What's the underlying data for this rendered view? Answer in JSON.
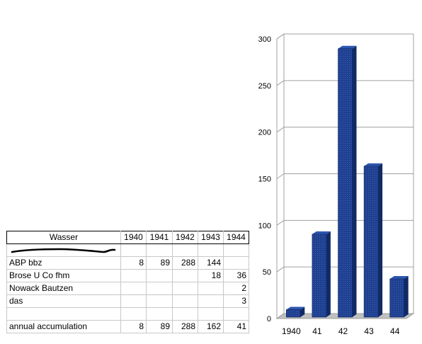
{
  "table": {
    "header": [
      "Wasser",
      "1940",
      "1941",
      "1942",
      "1943",
      "1944"
    ],
    "rows": [
      [
        "ABP bbz",
        "8",
        "89",
        "288",
        "144",
        ""
      ],
      [
        "Brose U Co fhm",
        "",
        "",
        "",
        "18",
        "36"
      ],
      [
        "Nowack Bautzen",
        "",
        "",
        "",
        "",
        "2"
      ],
      [
        "das",
        "",
        "",
        "",
        "",
        "3"
      ],
      [
        "",
        "",
        "",
        "",
        "",
        ""
      ]
    ],
    "total": [
      "annual  accumulation",
      "8",
      "89",
      "288",
      "162",
      "41"
    ]
  },
  "chart_data": {
    "type": "bar",
    "categories": [
      "1940",
      "41",
      "42",
      "43",
      "44"
    ],
    "values": [
      8,
      89,
      288,
      162,
      41
    ],
    "ylim": [
      0,
      300
    ],
    "yticks": [
      0,
      50,
      100,
      150,
      200,
      250,
      300
    ],
    "title": "",
    "xlabel": "",
    "ylabel": "",
    "grid": true,
    "bar_color": "#1f3f8f",
    "bar_side_color": "#112a66",
    "bar_top_color": "#2d56b0"
  }
}
